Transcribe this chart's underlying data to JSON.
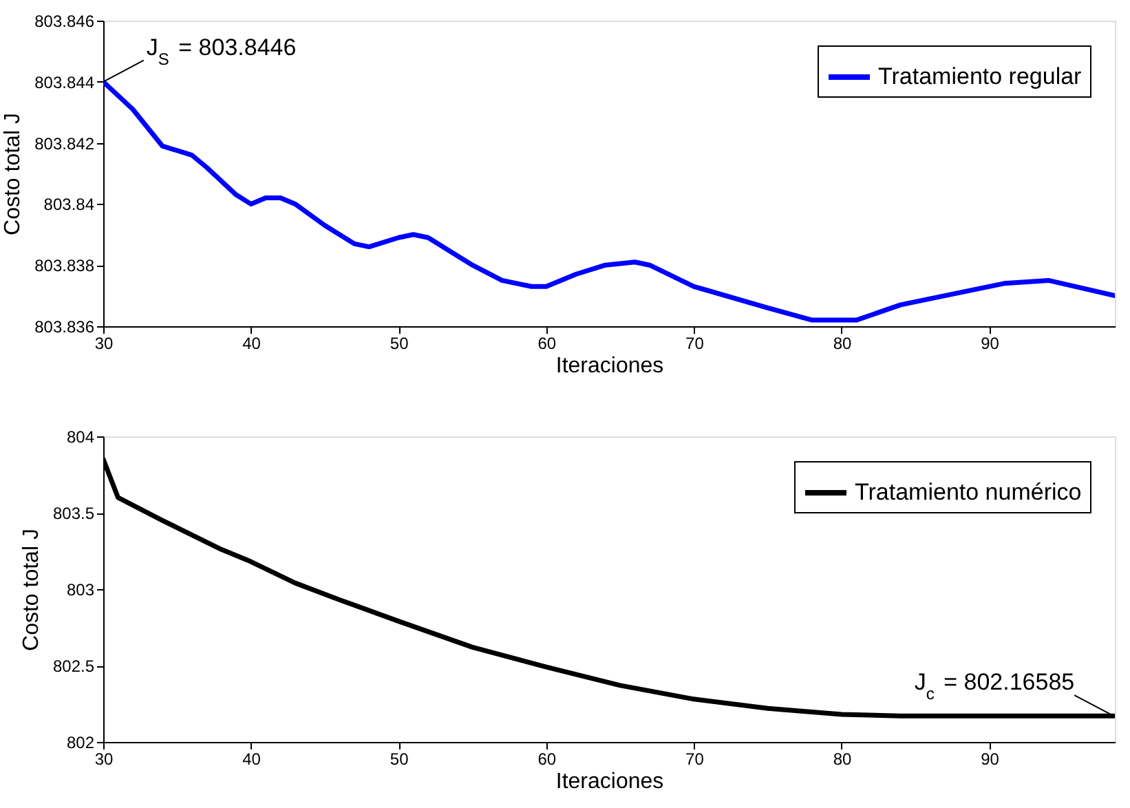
{
  "chart_data": [
    {
      "type": "line",
      "xlabel": "Iteraciones",
      "ylabel": "Costo total J",
      "xlim": [
        30,
        98.5
      ],
      "xticks": [
        30,
        40,
        50,
        60,
        70,
        80,
        90
      ],
      "ylim": [
        803.836,
        803.846
      ],
      "yticks": [
        803.836,
        803.838,
        803.84,
        803.842,
        803.844,
        803.846
      ],
      "grid": false,
      "legend": "top right",
      "marker": "none",
      "line_style": "solid",
      "x": [
        30,
        32,
        34,
        36,
        37,
        39,
        40,
        41,
        42,
        43,
        45,
        47,
        48,
        50,
        51,
        52,
        55,
        57,
        59,
        60,
        62,
        64,
        66,
        67,
        70,
        75,
        78,
        81,
        84,
        88,
        91,
        94,
        98.5
      ],
      "series": [
        {
          "name": "Tratamiento regular",
          "color": "#0000ff",
          "values": [
            803.844,
            803.8431,
            803.8419,
            803.8416,
            803.8412,
            803.8403,
            803.84,
            803.8402,
            803.8402,
            803.84,
            803.8393,
            803.8387,
            803.8386,
            803.8389,
            803.839,
            803.8389,
            803.838,
            803.8375,
            803.8373,
            803.8373,
            803.8377,
            803.838,
            803.8381,
            803.838,
            803.8373,
            803.8366,
            803.8362,
            803.8362,
            803.8367,
            803.8371,
            803.8374,
            803.8375,
            803.837
          ]
        }
      ],
      "annotations": [
        {
          "text": "J$_{S}$ = 803.8446",
          "x": 30,
          "y": 803.844
        }
      ]
    },
    {
      "type": "line",
      "xlabel": "Iteraciones",
      "ylabel": "Costo total J",
      "xlim": [
        30,
        98.5
      ],
      "xticks": [
        30,
        40,
        50,
        60,
        70,
        80,
        90
      ],
      "ylim": [
        802,
        804
      ],
      "yticks": [
        802,
        802.5,
        803,
        803.5,
        804
      ],
      "grid": false,
      "legend": "top right",
      "marker": "none",
      "line_style": "solid",
      "x": [
        30,
        31,
        34,
        38,
        40,
        43,
        46,
        50,
        55,
        60,
        65,
        70,
        75,
        80,
        84,
        98.5
      ],
      "series": [
        {
          "name": "Tratamiento numérico",
          "color": "#000000",
          "values": [
            803.85,
            803.6,
            803.45,
            803.26,
            803.18,
            803.04,
            802.93,
            802.79,
            802.62,
            802.49,
            802.37,
            802.28,
            802.22,
            802.18,
            802.17,
            802.17
          ]
        }
      ],
      "annotations": [
        {
          "text": "J$_{c}$ = 802.16585",
          "x": 98.5,
          "y": 802.16585
        }
      ]
    }
  ]
}
